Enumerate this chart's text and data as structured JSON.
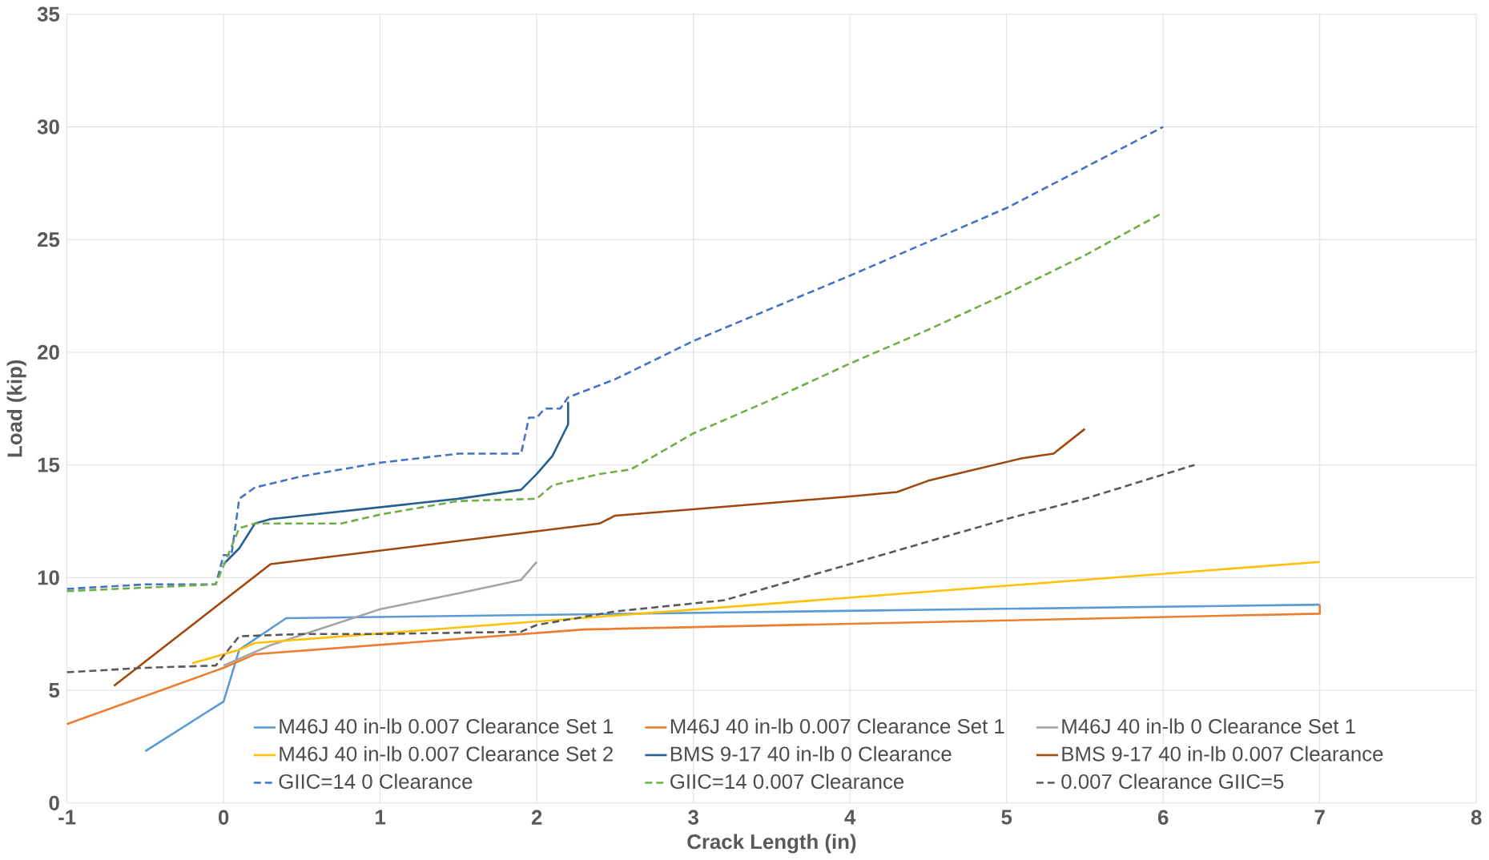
{
  "chart_data": {
    "type": "line",
    "xlabel": "Crack Length (in)",
    "ylabel": "Load (kip)",
    "xlim": [
      -1,
      8
    ],
    "ylim": [
      0,
      35
    ],
    "xticks": [
      -1,
      0,
      1,
      2,
      3,
      4,
      5,
      6,
      7,
      8
    ],
    "yticks": [
      0,
      5,
      10,
      15,
      20,
      25,
      30,
      35
    ],
    "grid": true,
    "legend": "bottom",
    "series": [
      {
        "name": "M46J 40 in-lb 0.007 Clearance Set 1",
        "color": "#5b9bd5",
        "line_style": "solid",
        "x": [
          -0.5,
          0,
          0.1,
          0.4,
          7
        ],
        "values": [
          2.3,
          4.5,
          6.8,
          8.2,
          8.8
        ]
      },
      {
        "name": "M46J 40 in-lb 0.007 Clearance Set 1",
        "color": "#ed7d31",
        "line_style": "solid",
        "x": [
          -1,
          0,
          0.2,
          2.3,
          7,
          7
        ],
        "values": [
          3.5,
          6.0,
          6.6,
          7.7,
          8.4,
          8.8
        ]
      },
      {
        "name": "M46J 40 in-lb 0 Clearance Set 1",
        "color": "#a5a5a5",
        "line_style": "solid",
        "x": [
          0,
          0.3,
          1,
          1.5,
          1.9,
          2
        ],
        "values": [
          6.1,
          7.0,
          8.6,
          9.3,
          9.9,
          10.7
        ]
      },
      {
        "name": "M46J 40 in-lb 0.007 Clearance Set 2",
        "color": "#ffc000",
        "line_style": "solid",
        "x": [
          -0.2,
          0.1,
          0.2,
          7
        ],
        "values": [
          6.2,
          6.8,
          7.1,
          10.7
        ]
      },
      {
        "name": "BMS 9-17 40 in-lb 0 Clearance",
        "color": "#255e91",
        "line_style": "solid",
        "x": [
          0,
          0.1,
          0.2,
          0.3,
          1.5,
          1.9,
          2,
          2.1,
          2.2,
          2.2
        ],
        "values": [
          10.6,
          11.3,
          12.4,
          12.6,
          13.5,
          13.9,
          14.6,
          15.4,
          16.8,
          17.8
        ]
      },
      {
        "name": "BMS 9-17 40 in-lb 0.007 Clearance",
        "color": "#9e480e",
        "line_style": "solid",
        "x": [
          -0.7,
          0.3,
          2.4,
          2.5,
          4,
          4.3,
          4.5,
          5.1,
          5.3,
          5.5
        ],
        "values": [
          5.2,
          10.6,
          12.4,
          12.75,
          13.6,
          13.8,
          14.3,
          15.3,
          15.5,
          16.6
        ]
      },
      {
        "name": "GIIC=14 0 Clearance",
        "color": "#4472c4",
        "line_style": "dashed",
        "x": [
          -1,
          -0.5,
          -0.05,
          0,
          0.05,
          0.1,
          0.2,
          0.5,
          1,
          1.5,
          1.9,
          1.95,
          2,
          2.05,
          2.15,
          2.2,
          2.5,
          3,
          4,
          5,
          6
        ],
        "values": [
          9.5,
          9.7,
          9.7,
          11.0,
          11.0,
          13.5,
          14.0,
          14.5,
          15.1,
          15.5,
          15.5,
          17.1,
          17.1,
          17.5,
          17.5,
          18.0,
          18.8,
          20.5,
          23.4,
          26.4,
          30.0
        ]
      },
      {
        "name": "GIIC=14 0.007 Clearance",
        "color": "#70ad47",
        "line_style": "dashed",
        "x": [
          -1,
          -0.05,
          0.1,
          0.2,
          0.75,
          1,
          1.5,
          2,
          2.1,
          2.4,
          2.6,
          2.8,
          3,
          3.5,
          4,
          4.5,
          5,
          5.5,
          6
        ],
        "values": [
          9.4,
          9.7,
          12.2,
          12.4,
          12.4,
          12.8,
          13.4,
          13.5,
          14.1,
          14.6,
          14.8,
          15.6,
          16.4,
          17.9,
          19.5,
          21.0,
          22.6,
          24.3,
          26.2
        ]
      },
      {
        "name": "0.007 Clearance GIIC=5",
        "color": "#595959",
        "line_style": "dashed",
        "x": [
          -1,
          -0.5,
          -0.05,
          0.1,
          0.5,
          1,
          1.9,
          2,
          2.5,
          3.2,
          4,
          5,
          5.5,
          6.2
        ],
        "values": [
          5.8,
          6.0,
          6.1,
          7.4,
          7.5,
          7.5,
          7.6,
          7.9,
          8.5,
          9.0,
          10.6,
          12.6,
          13.5,
          15.0
        ]
      }
    ]
  }
}
